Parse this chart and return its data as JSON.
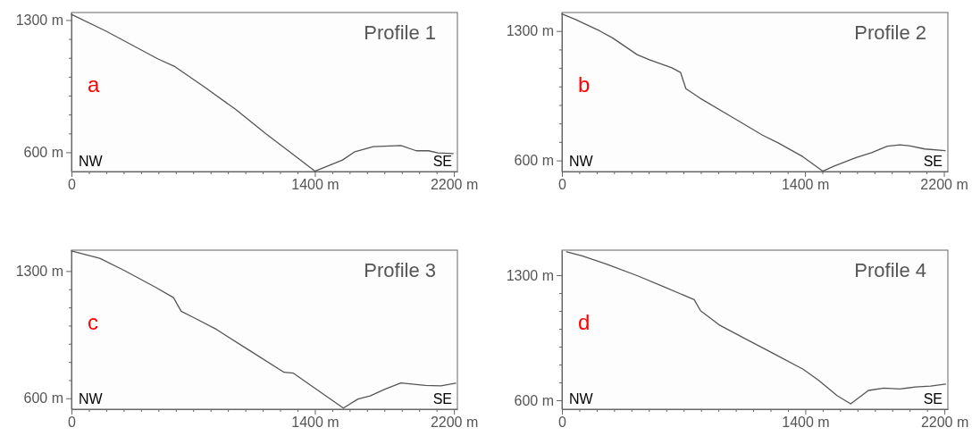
{
  "chart_data": [
    {
      "type": "line",
      "title": "Profile 1",
      "annotations": [
        "a",
        "NW",
        "SE"
      ],
      "color": "#555555",
      "xlim": [
        0,
        2220
      ],
      "ylim": [
        498,
        1340
      ],
      "xticks": [
        {
          "value": 0,
          "label": "0"
        },
        {
          "value": 100,
          "label": null
        },
        {
          "value": 200,
          "label": null
        },
        {
          "value": 300,
          "label": null
        },
        {
          "value": 400,
          "label": null
        },
        {
          "value": 500,
          "label": null
        },
        {
          "value": 600,
          "label": null
        },
        {
          "value": 700,
          "label": null
        },
        {
          "value": 800,
          "label": null
        },
        {
          "value": 900,
          "label": null
        },
        {
          "value": 1000,
          "label": null
        },
        {
          "value": 1100,
          "label": null
        },
        {
          "value": 1200,
          "label": null
        },
        {
          "value": 1300,
          "label": null
        },
        {
          "value": 1400,
          "label": "1400 m"
        },
        {
          "value": 1500,
          "label": null
        },
        {
          "value": 1600,
          "label": null
        },
        {
          "value": 1700,
          "label": null
        },
        {
          "value": 1800,
          "label": null
        },
        {
          "value": 1900,
          "label": null
        },
        {
          "value": 2000,
          "label": null
        },
        {
          "value": 2100,
          "label": null
        },
        {
          "value": 2200,
          "label": "2200 m"
        }
      ],
      "yticks": [
        {
          "value": 600,
          "label": "600 m"
        },
        {
          "value": 700,
          "label": null
        },
        {
          "value": 800,
          "label": null
        },
        {
          "value": 900,
          "label": null
        },
        {
          "value": 1000,
          "label": null
        },
        {
          "value": 1100,
          "label": null
        },
        {
          "value": 1200,
          "label": null
        },
        {
          "value": 1300,
          "label": "1300 m"
        }
      ],
      "x": [
        0,
        198,
        498,
        596,
        764,
        940,
        1117,
        1259,
        1400,
        1559,
        1630,
        1736,
        1895,
        1983,
        2054,
        2107,
        2195
      ],
      "values": [
        1330,
        1242,
        1094,
        1053,
        946,
        830,
        699,
        600,
        500,
        559,
        603,
        630,
        636,
        608,
        608,
        597,
        593
      ]
    },
    {
      "type": "line",
      "title": "Profile 2",
      "annotations": [
        "b",
        "NW",
        "SE"
      ],
      "color": "#555555",
      "xlim": [
        0,
        2223
      ],
      "ylim": [
        540,
        1400
      ],
      "xticks": [
        {
          "value": 0,
          "label": "0"
        },
        {
          "value": 100,
          "label": null
        },
        {
          "value": 200,
          "label": null
        },
        {
          "value": 300,
          "label": null
        },
        {
          "value": 400,
          "label": null
        },
        {
          "value": 500,
          "label": null
        },
        {
          "value": 600,
          "label": null
        },
        {
          "value": 700,
          "label": null
        },
        {
          "value": 800,
          "label": null
        },
        {
          "value": 900,
          "label": null
        },
        {
          "value": 1000,
          "label": null
        },
        {
          "value": 1100,
          "label": null
        },
        {
          "value": 1200,
          "label": null
        },
        {
          "value": 1300,
          "label": null
        },
        {
          "value": 1400,
          "label": "1400 m"
        },
        {
          "value": 1500,
          "label": null
        },
        {
          "value": 1600,
          "label": null
        },
        {
          "value": 1700,
          "label": null
        },
        {
          "value": 1800,
          "label": null
        },
        {
          "value": 1900,
          "label": null
        },
        {
          "value": 2000,
          "label": null
        },
        {
          "value": 2100,
          "label": null
        },
        {
          "value": 2200,
          "label": "2200 m"
        }
      ],
      "yticks": [
        {
          "value": 600,
          "label": "600 m"
        },
        {
          "value": 700,
          "label": null
        },
        {
          "value": 800,
          "label": null
        },
        {
          "value": 900,
          "label": null
        },
        {
          "value": 1000,
          "label": null
        },
        {
          "value": 1100,
          "label": null
        },
        {
          "value": 1200,
          "label": null
        },
        {
          "value": 1300,
          "label": "1300 m"
        }
      ],
      "x": [
        0,
        76,
        219,
        291,
        435,
        507,
        633,
        683,
        714,
        795,
        975,
        1155,
        1245,
        1388,
        1502,
        1568,
        1694,
        1784,
        1874,
        1946,
        2000,
        2090,
        2207
      ],
      "values": [
        1392,
        1363,
        1300,
        1263,
        1171,
        1143,
        1101,
        1076,
        988,
        937,
        837,
        737,
        695,
        620,
        542,
        570,
        615,
        642,
        677,
        684,
        680,
        662,
        653
      ]
    },
    {
      "type": "line",
      "title": "Profile 3",
      "annotations": [
        "c",
        "NW",
        "SE"
      ],
      "color": "#555555",
      "xlim": [
        0,
        2220
      ],
      "ylim": [
        540,
        1415
      ],
      "xticks": [
        {
          "value": 0,
          "label": "0"
        },
        {
          "value": 100,
          "label": null
        },
        {
          "value": 200,
          "label": null
        },
        {
          "value": 300,
          "label": null
        },
        {
          "value": 400,
          "label": null
        },
        {
          "value": 500,
          "label": null
        },
        {
          "value": 600,
          "label": null
        },
        {
          "value": 700,
          "label": null
        },
        {
          "value": 800,
          "label": null
        },
        {
          "value": 900,
          "label": null
        },
        {
          "value": 1000,
          "label": null
        },
        {
          "value": 1100,
          "label": null
        },
        {
          "value": 1200,
          "label": null
        },
        {
          "value": 1300,
          "label": null
        },
        {
          "value": 1400,
          "label": "1400 m"
        },
        {
          "value": 1500,
          "label": null
        },
        {
          "value": 1600,
          "label": null
        },
        {
          "value": 1700,
          "label": null
        },
        {
          "value": 1800,
          "label": null
        },
        {
          "value": 1900,
          "label": null
        },
        {
          "value": 2000,
          "label": null
        },
        {
          "value": 2100,
          "label": null
        },
        {
          "value": 2200,
          "label": "2200 m"
        }
      ],
      "yticks": [
        {
          "value": 600,
          "label": "600 m"
        },
        {
          "value": 700,
          "label": null
        },
        {
          "value": 800,
          "label": null
        },
        {
          "value": 900,
          "label": null
        },
        {
          "value": 1000,
          "label": null
        },
        {
          "value": 1100,
          "label": null
        },
        {
          "value": 1200,
          "label": null
        },
        {
          "value": 1300,
          "label": "1300 m"
        }
      ],
      "x": [
        0,
        163,
        304,
        481,
        587,
        631,
        701,
        834,
        1011,
        1223,
        1277,
        1365,
        1564,
        1648,
        1718,
        1806,
        1895,
        2036,
        2125,
        2210
      ],
      "values": [
        1411,
        1370,
        1303,
        1212,
        1154,
        1079,
        1045,
        979,
        871,
        743,
        738,
        679,
        546,
        596,
        613,
        651,
        684,
        671,
        668,
        683
      ]
    },
    {
      "type": "line",
      "title": "Profile 4",
      "annotations": [
        "d",
        "NW",
        "SE"
      ],
      "color": "#555555",
      "xlim": [
        0,
        2220
      ],
      "ylim": [
        550,
        1440
      ],
      "xticks": [
        {
          "value": 0,
          "label": "0"
        },
        {
          "value": 100,
          "label": null
        },
        {
          "value": 200,
          "label": null
        },
        {
          "value": 300,
          "label": null
        },
        {
          "value": 400,
          "label": null
        },
        {
          "value": 500,
          "label": null
        },
        {
          "value": 600,
          "label": null
        },
        {
          "value": 700,
          "label": null
        },
        {
          "value": 800,
          "label": null
        },
        {
          "value": 900,
          "label": null
        },
        {
          "value": 1000,
          "label": null
        },
        {
          "value": 1100,
          "label": null
        },
        {
          "value": 1200,
          "label": null
        },
        {
          "value": 1300,
          "label": null
        },
        {
          "value": 1400,
          "label": "1400 m"
        },
        {
          "value": 1500,
          "label": null
        },
        {
          "value": 1600,
          "label": null
        },
        {
          "value": 1700,
          "label": null
        },
        {
          "value": 1800,
          "label": null
        },
        {
          "value": 1900,
          "label": null
        },
        {
          "value": 2000,
          "label": null
        },
        {
          "value": 2100,
          "label": null
        },
        {
          "value": 2200,
          "label": "2200 m"
        }
      ],
      "yticks": [
        {
          "value": 600,
          "label": "600 m"
        },
        {
          "value": 700,
          "label": null
        },
        {
          "value": 800,
          "label": null
        },
        {
          "value": 900,
          "label": null
        },
        {
          "value": 1000,
          "label": null
        },
        {
          "value": 1100,
          "label": null
        },
        {
          "value": 1200,
          "label": null
        },
        {
          "value": 1300,
          "label": "1300 m"
        }
      ],
      "x": [
        27,
        116,
        260,
        439,
        582,
        761,
        797,
        904,
        1047,
        1226,
        1387,
        1477,
        1584,
        1661,
        1763,
        1853,
        1943,
        2032,
        2121,
        2207
      ],
      "values": [
        1431,
        1408,
        1361,
        1295,
        1237,
        1163,
        1101,
        1022,
        948,
        857,
        774,
        711,
        625,
        580,
        655,
        668,
        663,
        674,
        679,
        691
      ]
    }
  ]
}
